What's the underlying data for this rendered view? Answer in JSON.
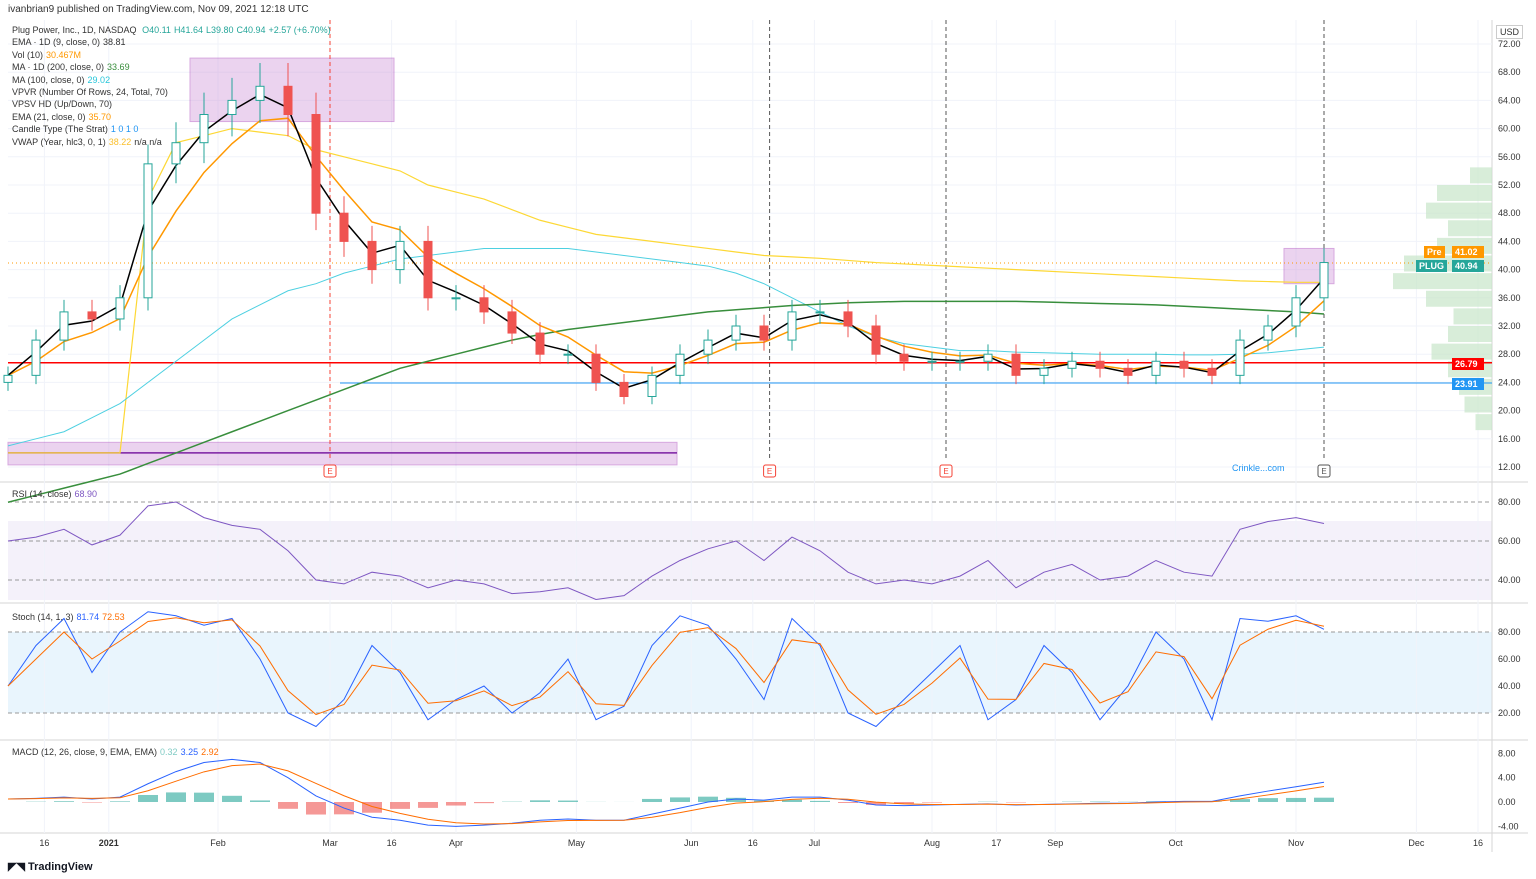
{
  "header": "ivanbrian9 published on TradingView.com, Nov 09, 2021 12:18 UTC",
  "legend": {
    "symbol": "Plug Power, Inc., 1D, NASDAQ",
    "o": "O40.11",
    "h": "H41.64",
    "l": "L39.80",
    "c": "C40.94",
    "chg": "+2.57 (+6.70%)",
    "ema9": "EMA · 1D (9, close, 0)",
    "ema9_v": "38.81",
    "vol": "Vol (10)",
    "vol_v": "30.467M",
    "ma200": "MA · 1D (200, close, 0)",
    "ma200_v": "33.69",
    "ma100": "MA (100, close, 0)",
    "ma100_v": "29.02",
    "vpvr": "VPVR (Number Of Rows, 24, Total, 70)",
    "vpsv": "VPSV HD (Up/Down, 70)",
    "ema21": "EMA (21, close, 0)",
    "ema21_v": "35.70",
    "strat": "Candle Type (The Strat)",
    "strat_v": "1 0 1 0",
    "vwap": "VWAP (Year, hlc3, 0, 1)",
    "vwap_v": "38.22",
    "vwap_na": "n/a n/a"
  },
  "rsi_legend": {
    "label": "RSI (14, close)",
    "v": "68.90"
  },
  "stoch_legend": {
    "label": "Stoch (14, 1, 3)",
    "k": "81.74",
    "d": "72.53"
  },
  "macd_legend": {
    "label": "MACD (12, 26, close, 9, EMA, EMA)",
    "h": "0.32",
    "m": "3.25",
    "s": "2.92"
  },
  "axis": {
    "currency": "USD",
    "pre_label": "Pre",
    "pre_v": "41.02",
    "sym_label": "PLUG",
    "sym_v": "40.94",
    "red_level": "26.79",
    "blue_level": "23.91"
  },
  "watermark": "Crinkle...com",
  "footer": "TradingView",
  "colors": {
    "up": "#26a69a",
    "down": "#ef5350",
    "ema9": "#000000",
    "ema21": "#ff9800",
    "ma100": "#4dd0e1",
    "ma200": "#388e3c",
    "vwap": "#ffeb3b",
    "rsi": "#7e57c2",
    "k": "#2962ff",
    "d": "#ff6d00"
  },
  "chart_data": {
    "type": "candlestick",
    "price_ticks": [
      "72.00",
      "68.00",
      "64.00",
      "60.00",
      "56.00",
      "52.00",
      "48.00",
      "44.00",
      "40.00",
      "36.00",
      "32.00",
      "28.00",
      "24.00",
      "20.00",
      "16.00",
      "12.00"
    ],
    "time_ticks": [
      {
        "l": "16",
        "w": 1.3
      },
      {
        "l": "2021",
        "w": 3.6
      },
      {
        "l": "Feb",
        "w": 7.5
      },
      {
        "l": "Mar",
        "w": 11.5
      },
      {
        "l": "16",
        "w": 13.7
      },
      {
        "l": "Apr",
        "w": 16
      },
      {
        "l": "May",
        "w": 20.3
      },
      {
        "l": "Jun",
        "w": 24.4
      },
      {
        "l": "16",
        "w": 26.6
      },
      {
        "l": "Jul",
        "w": 28.8
      },
      {
        "l": "Aug",
        "w": 33
      },
      {
        "l": "17",
        "w": 35.3
      },
      {
        "l": "Sep",
        "w": 37.4
      },
      {
        "l": "Oct",
        "w": 41.7
      },
      {
        "l": "Nov",
        "w": 46
      },
      {
        "l": "Dec",
        "w": 50.3
      },
      {
        "l": "16",
        "w": 52.5
      }
    ],
    "weekly_close": [
      25,
      30,
      34,
      33,
      36,
      55,
      58,
      62,
      64,
      66,
      62,
      48,
      44,
      40,
      44,
      36,
      36,
      34,
      31,
      28,
      28,
      24,
      22,
      25,
      28,
      30,
      32,
      30,
      34,
      34,
      32,
      28,
      27,
      27,
      27,
      28,
      25,
      26,
      27,
      26,
      25,
      27,
      26,
      25,
      30,
      32,
      36,
      41
    ],
    "ma100": [
      15,
      16,
      17,
      19,
      21,
      24,
      27,
      30,
      33,
      35,
      37,
      38,
      39.5,
      40.5,
      41.5,
      42,
      42.5,
      43,
      43,
      43,
      43,
      42.5,
      42,
      41.5,
      41,
      40.5,
      39.5,
      38,
      36,
      34,
      32,
      30.5,
      29.5,
      29,
      28.5,
      28.5,
      28.3,
      28.2,
      28.1,
      28,
      28,
      28,
      27.9,
      27.9,
      28,
      28.2,
      28.6,
      29
    ],
    "ma200": [
      7,
      8,
      9,
      10,
      11,
      12.5,
      14,
      15.5,
      17,
      18.5,
      20,
      21.5,
      23,
      24.5,
      26,
      27,
      28,
      29,
      30,
      30.8,
      31.5,
      32,
      32.5,
      33,
      33.5,
      34,
      34.3,
      34.6,
      34.9,
      35.1,
      35.3,
      35.4,
      35.5,
      35.5,
      35.5,
      35.5,
      35.5,
      35.4,
      35.3,
      35.2,
      35.1,
      35,
      34.8,
      34.6,
      34.4,
      34.2,
      34,
      33.7
    ],
    "vwap": [
      14,
      14,
      14,
      14,
      14,
      50,
      58,
      59,
      60,
      59.5,
      59,
      57,
      56,
      55,
      54,
      52,
      51,
      50,
      48.5,
      47,
      46,
      45,
      44.5,
      44,
      43.5,
      43,
      42.5,
      42,
      41.8,
      41.6,
      41.3,
      41,
      40.8,
      40.6,
      40.4,
      40.2,
      40,
      39.8,
      39.6,
      39.4,
      39.2,
      39,
      38.8,
      38.6,
      38.4,
      38.3,
      38.2,
      38.2
    ],
    "rsi": [
      60,
      62,
      66,
      58,
      63,
      78,
      80,
      72,
      68,
      66,
      55,
      40,
      38,
      44,
      42,
      36,
      40,
      38,
      33,
      34,
      36,
      30,
      32,
      42,
      50,
      56,
      60,
      50,
      62,
      55,
      44,
      38,
      40,
      38,
      42,
      50,
      36,
      44,
      48,
      40,
      42,
      50,
      44,
      42,
      66,
      70,
      72,
      69
    ],
    "stoch_k": [
      40,
      70,
      90,
      50,
      80,
      95,
      92,
      85,
      90,
      60,
      20,
      10,
      30,
      70,
      50,
      15,
      30,
      40,
      20,
      35,
      60,
      15,
      25,
      70,
      92,
      85,
      60,
      30,
      90,
      70,
      20,
      10,
      30,
      50,
      70,
      15,
      30,
      70,
      50,
      15,
      40,
      80,
      60,
      15,
      90,
      88,
      92,
      82
    ],
    "macd": [
      0.5,
      0.6,
      0.8,
      0.5,
      0.8,
      3,
      5,
      6.5,
      7,
      6.5,
      4,
      1,
      -1,
      -2.5,
      -3,
      -3.8,
      -4,
      -3.8,
      -3.5,
      -3,
      -2.8,
      -3,
      -3,
      -2,
      -1,
      0,
      0.5,
      0.3,
      0.8,
      0.8,
      0.3,
      -0.5,
      -0.6,
      -0.5,
      -0.4,
      -0.3,
      -0.5,
      -0.4,
      -0.3,
      -0.2,
      -0.2,
      0,
      0.1,
      0.1,
      1,
      1.8,
      2.5,
      3.25
    ],
    "vp_profile": [
      0,
      0,
      0,
      0,
      0,
      0,
      0,
      0.2,
      0.5,
      0.6,
      0.4,
      0.5,
      0.8,
      0.9,
      0.6,
      0.35,
      0.4,
      0.55,
      0.4,
      0.3,
      0.25,
      0.15,
      0,
      0
    ],
    "earnings_weeks": [
      11.5,
      27.2,
      33.5,
      47
    ]
  }
}
